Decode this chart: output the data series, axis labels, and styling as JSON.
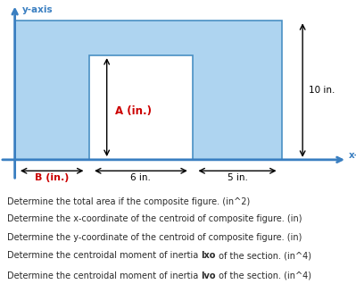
{
  "fig_width": 3.99,
  "fig_height": 3.18,
  "dpi": 100,
  "axis_color": "#3a7fc1",
  "rect_fill": "#aed4f0",
  "rect_edge": "#4a90c4",
  "yaxis_label": "y-axis",
  "xaxis_label": "x-axis",
  "label_A": "A (in.)",
  "label_A_color": "#cc0000",
  "label_B": "B (in.)",
  "label_B_color": "#cc0000",
  "dim_10in": "10 in.",
  "dim_6in": "6 in.",
  "dim_5in": "5 in.",
  "questions": [
    "Determine the total area if the composite figure. (in^2)",
    "Determine the x-coordinate of the centroid of composite figure. (in)",
    "Determine the y-coordinate of the centroid of composite figure. (in)",
    "Determine the centroidal moment of inertia |Ixo| of the section. (in^4)",
    "Determine the centroidal moment of inertia |Ivo| of the section. (in^4)"
  ],
  "bg_color": "white",
  "text_color": "#2a2a2a"
}
